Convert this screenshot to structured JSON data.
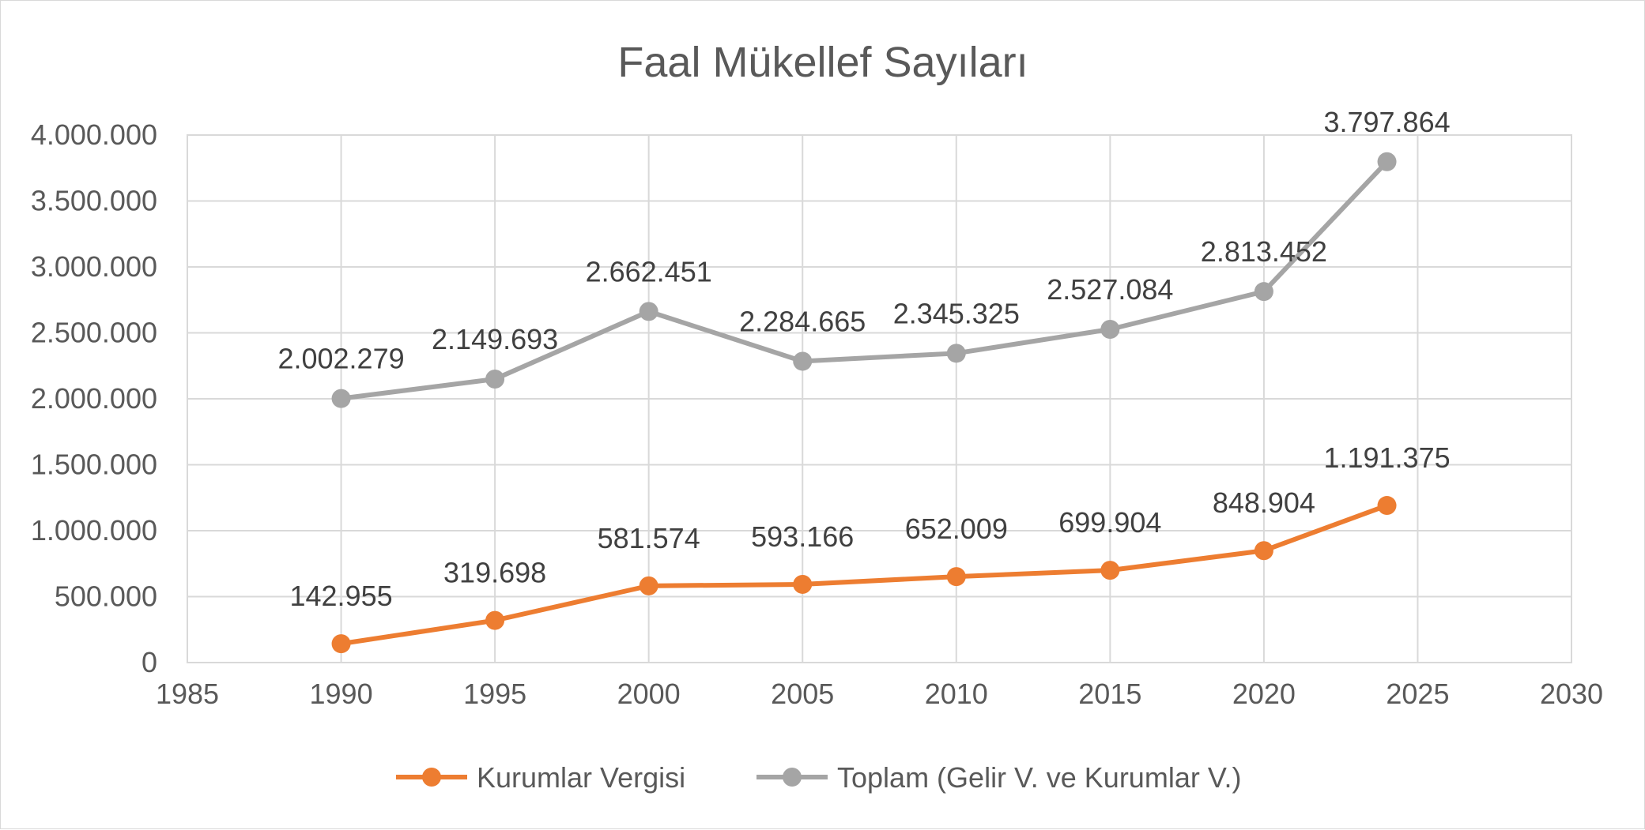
{
  "chart_data": {
    "type": "line",
    "title": "Faal Mükellef Sayıları",
    "xlabel": "",
    "ylabel": "",
    "xlim": [
      1985,
      2030
    ],
    "ylim": [
      0,
      4000000
    ],
    "x_ticks": [
      1985,
      1990,
      1995,
      2000,
      2005,
      2010,
      2015,
      2020,
      2025,
      2030
    ],
    "x_tick_labels": [
      "1985",
      "1990",
      "1995",
      "2000",
      "2005",
      "2010",
      "2015",
      "2020",
      "2025",
      "2030"
    ],
    "y_ticks": [
      0,
      500000,
      1000000,
      1500000,
      2000000,
      2500000,
      3000000,
      3500000,
      4000000
    ],
    "y_tick_labels": [
      "0",
      "500.000",
      "1.000.000",
      "1.500.000",
      "2.000.000",
      "2.500.000",
      "3.000.000",
      "3.500.000",
      "4.000.000"
    ],
    "grid": true,
    "legend": "bottom",
    "series": [
      {
        "name": "Kurumlar Vergisi",
        "color": "#ED7D31",
        "x": [
          1990,
          1995,
          2000,
          2005,
          2010,
          2015,
          2020,
          2024
        ],
        "values": [
          142955,
          319698,
          581574,
          593166,
          652009,
          699904,
          848904,
          1191375
        ],
        "labels": [
          "142.955",
          "319.698",
          "581.574",
          "593.166",
          "652.009",
          "699.904",
          "848.904",
          "1.191.375"
        ]
      },
      {
        "name": "Toplam (Gelir V. ve Kurumlar V.)",
        "color": "#A5A5A5",
        "x": [
          1990,
          1995,
          2000,
          2005,
          2010,
          2015,
          2020,
          2024
        ],
        "values": [
          2002279,
          2149693,
          2662451,
          2284665,
          2345325,
          2527084,
          2813452,
          3797864
        ],
        "labels": [
          "2.002.279",
          "2.149.693",
          "2.662.451",
          "2.284.665",
          "2.345.325",
          "2.527.084",
          "2.813.452",
          "3.797.864"
        ]
      }
    ]
  }
}
